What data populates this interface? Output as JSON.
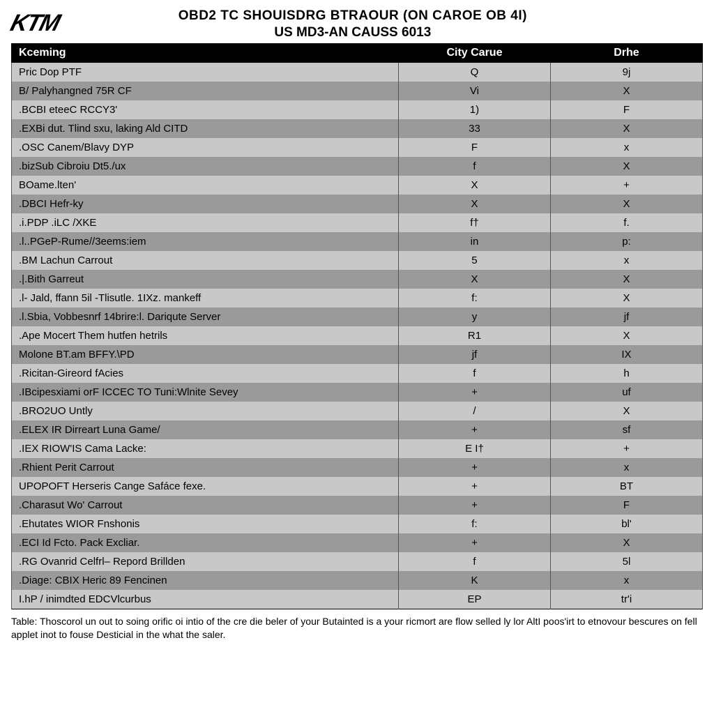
{
  "logo_text": "KTM",
  "title_line1": "OBD2 TC SHOUISDRG BTRAOUR (ON CAROE OB 4I)",
  "title_line2": "US MD3-AN CAUSS 6013",
  "table": {
    "type": "table",
    "header_bg": "#000000",
    "header_fg": "#ffffff",
    "row_light_bg": "#c8c8c8",
    "row_dark_bg": "#9a9a9a",
    "border_color": "#000000",
    "font_size": 15,
    "header_font_size": 16,
    "columns": [
      {
        "label": "Kceming",
        "align": "left",
        "width_pct": 56
      },
      {
        "label": "City Carue",
        "align": "center",
        "width_pct": 22
      },
      {
        "label": "Drhe",
        "align": "center",
        "width_pct": 22
      }
    ],
    "rows": [
      {
        "c1": "Pric Dop PTF",
        "c2": "Q",
        "c3": "9j"
      },
      {
        "c1": "B/ Palyhangned 75R CF",
        "c2": "Vi",
        "c3": "X"
      },
      {
        "c1": ".BCBI eteeC RCCY3'",
        "c2": "1)",
        "c3": "F"
      },
      {
        "c1": ".EXBi dut. Tlind sxu, laking Ald CITD",
        "c2": "33",
        "c3": "X"
      },
      {
        "c1": ".OSC Canem/Blavy DYP",
        "c2": "F",
        "c3": "x"
      },
      {
        "c1": ".bizSub Cibroiu Dt5./ux",
        "c2": "f",
        "c3": "X"
      },
      {
        "c1": "BOame.lten'",
        "c2": "X",
        "c3": "+"
      },
      {
        "c1": ".DBCI Hefr-ky",
        "c2": "X",
        "c3": "X"
      },
      {
        "c1": ".i.PDP .iLC /XKE",
        "c2": "f†",
        "c3": "f."
      },
      {
        "c1": ".l..PGeP-Rume//3eems:iem",
        "c2": "in",
        "c3": "p:"
      },
      {
        "c1": ".BM Lachun Carrout",
        "c2": "5",
        "c3": "x"
      },
      {
        "c1": ".|.Bith Garreut",
        "c2": "X",
        "c3": "X"
      },
      {
        "c1": ".l- Jald, ffann 5il -Tlisutle. 1IXz. mankeff",
        "c2": "f:",
        "c3": "X"
      },
      {
        "c1": ".l.Sbia, Vobbesnrf 14brire:l. Dariqute Server",
        "c2": "y",
        "c3": "jf"
      },
      {
        "c1": ".Ape Mocert Them hutfen hetrils",
        "c2": "R1",
        "c3": "X"
      },
      {
        "c1": "Molone BT.am BFFY.\\PD",
        "c2": "jf",
        "c3": "IX"
      },
      {
        "c1": ".Ricitan-Gireord fAcies",
        "c2": "f",
        "c3": "h"
      },
      {
        "c1": ".IBcipesxiami orF ICCEC TO Tuni:Wlnite Sevey",
        "c2": "+",
        "c3": "uf"
      },
      {
        "c1": ".BRO2UO Untly",
        "c2": "/",
        "c3": "X"
      },
      {
        "c1": ".ELEX IR Dirreart Luna Game/",
        "c2": "+",
        "c3": "sf"
      },
      {
        "c1": ".IEX RIOW'IS Cama Lacke:",
        "c2": "E I†",
        "c3": "+"
      },
      {
        "c1": ".Rhient Perit Carrout",
        "c2": "+",
        "c3": "x"
      },
      {
        "c1": "UPOPOFT Herseris Cange Safáce fexe.",
        "c2": "+",
        "c3": "BT"
      },
      {
        "c1": ".Charasut Wo' Carrout",
        "c2": "+",
        "c3": "F"
      },
      {
        "c1": ".Ehutates WIOR Fnshonis",
        "c2": "f:",
        "c3": "bl'"
      },
      {
        "c1": ".ECI Id Fcto. Pack Excliar.",
        "c2": "+",
        "c3": "X"
      },
      {
        "c1": ".RG Ovanrid Celfrl– Repord Brillden",
        "c2": "f",
        "c3": "5l"
      },
      {
        "c1": ".Diage: CBIX Heric 89 Fencinen",
        "c2": "K",
        "c3": "x"
      },
      {
        "c1": "I.hP / inimdted EDCVlcurbus",
        "c2": "EP",
        "c3": "tr'i"
      }
    ]
  },
  "footer_text": "Table: Thoscorol un out to soing orific oi intio of the cre die beler of your Butainted is a your ricmort are flow selled ly lor AltI poos'irt to etnovour bescures on fell applet inot to fouse Desticial in the what the saler."
}
